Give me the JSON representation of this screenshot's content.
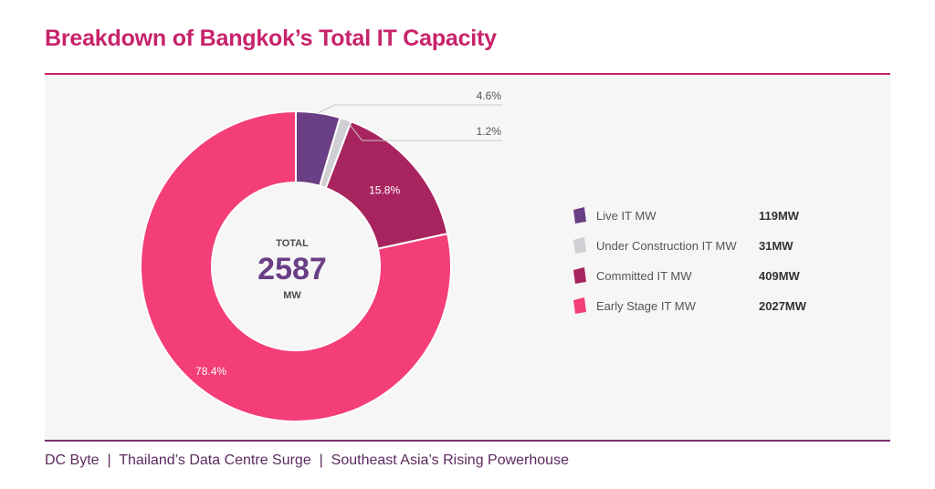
{
  "title": "Breakdown of Bangkok’s Total IT Capacity",
  "footer": {
    "source": "DC Byte",
    "sep": "|",
    "report": "Thailand’s Data Centre Surge",
    "subtitle": "Southeast Asia’s Rising Powerhouse"
  },
  "colors": {
    "title": "#c8226b",
    "footer": "#5b2a5e",
    "panel": "#f7f6f6"
  },
  "center": {
    "label_top": "TOTAL",
    "value": "2587",
    "label_bottom": "MW"
  },
  "chart_data": {
    "type": "pie",
    "donut": true,
    "total": 2587,
    "unit": "MW",
    "legend_position": "right",
    "slices": [
      {
        "name": "Live IT MW",
        "value": 119,
        "value_label": "119MW",
        "percent": 4.6,
        "percent_label": "4.6%",
        "color": "#6b3f85",
        "label_outside": true
      },
      {
        "name": "Under Construction IT MW",
        "value": 31,
        "value_label": "31MW",
        "percent": 1.2,
        "percent_label": "1.2%",
        "color": "#cfcfd4",
        "label_outside": true
      },
      {
        "name": "Committed IT MW",
        "value": 409,
        "value_label": "409MW",
        "percent": 15.8,
        "percent_label": "15.8%",
        "color": "#a8245e",
        "label_outside": false
      },
      {
        "name": "Early Stage IT MW",
        "value": 2027,
        "value_label": "2027MW",
        "percent": 78.4,
        "percent_label": "78.4%",
        "color": "#f33e77",
        "label_outside": false
      }
    ]
  }
}
